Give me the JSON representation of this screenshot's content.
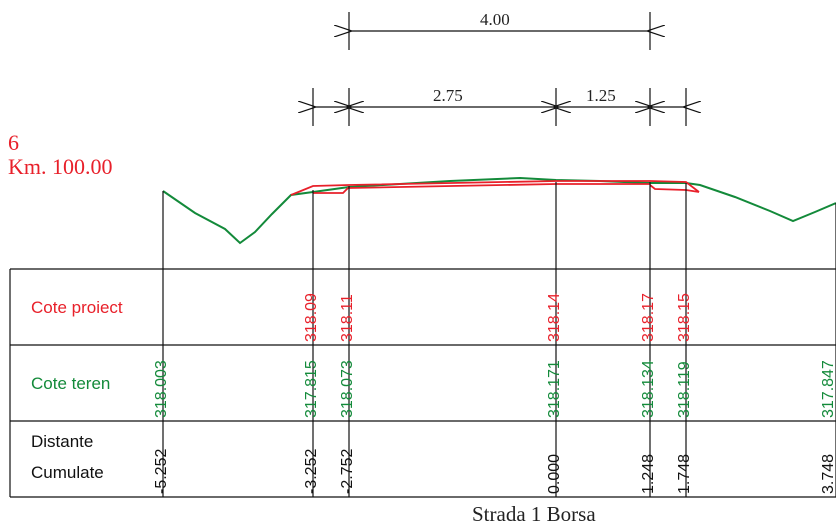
{
  "colors": {
    "project": "#e8202a",
    "terrain": "#138a3a",
    "ink": "#111111"
  },
  "station": {
    "number": "6",
    "km": "Km. 100.00"
  },
  "dimensions": {
    "overall": "4.00",
    "left": "2.75",
    "right": "1.25"
  },
  "rows": {
    "project_label": "Cote proiect",
    "terrain_label": "Cote teren",
    "distance_label_1": "Distante",
    "distance_label_2": "Cumulate"
  },
  "profile": {
    "offsets": [
      -5.252,
      -3.252,
      -2.752,
      0.0,
      1.248,
      1.748,
      3.748
    ],
    "project_elevations": [
      null,
      "318.09",
      "318.11",
      "318.14",
      "318.17",
      "318.15",
      null
    ],
    "terrain_elevations": [
      "318.003",
      "317.815",
      "318.073",
      "318.171",
      "318.134",
      "318.119",
      "317.847"
    ],
    "distances": [
      "-5.252",
      "-3.252",
      "-2.752",
      "0.000",
      "1.248",
      "1.748",
      "3.748"
    ]
  },
  "caption": "Strada 1 Borsa"
}
